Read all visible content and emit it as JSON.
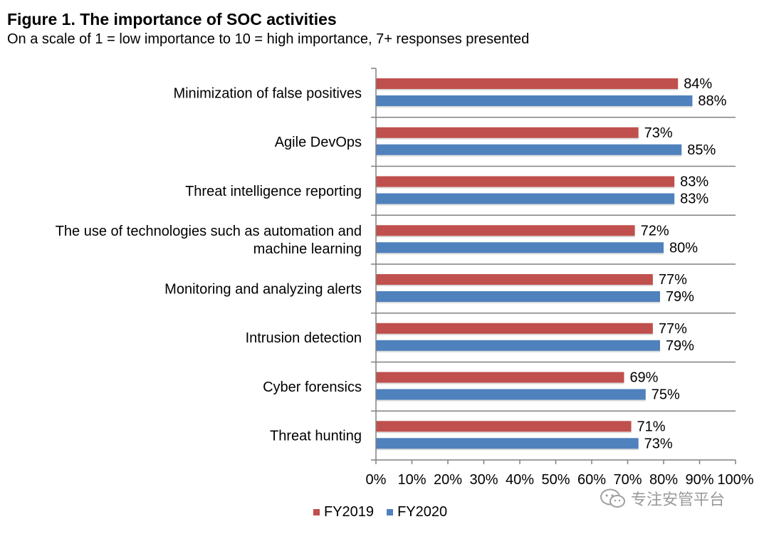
{
  "title": "Figure 1. The importance of SOC activities",
  "subtitle": "On a scale of 1 = low importance to 10 = high importance, 7+ responses presented",
  "watermark": {
    "text": "专注安管平台",
    "icon": "wechat-icon"
  },
  "chart_data": {
    "type": "bar",
    "orientation": "horizontal",
    "categories": [
      "Minimization of false positives",
      "Agile DevOps",
      "Threat intelligence reporting",
      "The use of technologies such as automation and machine learning",
      "Monitoring and analyzing alerts",
      "Intrusion detection",
      "Cyber forensics",
      "Threat hunting"
    ],
    "category_lines": [
      [
        "Minimization of false positives"
      ],
      [
        "Agile DevOps"
      ],
      [
        "Threat intelligence reporting"
      ],
      [
        "The use of technologies such as automation and",
        "machine learning"
      ],
      [
        "Monitoring and analyzing alerts"
      ],
      [
        "Intrusion detection"
      ],
      [
        "Cyber forensics"
      ],
      [
        "Threat hunting"
      ]
    ],
    "series": [
      {
        "name": "FY2019",
        "color": "#c0504d",
        "values": [
          84,
          73,
          83,
          72,
          77,
          77,
          69,
          71
        ],
        "labels": [
          "84%",
          "73%",
          "83%",
          "72%",
          "77%",
          "77%",
          "69%",
          "71%"
        ]
      },
      {
        "name": "FY2020",
        "color": "#4f81bd",
        "values": [
          88,
          85,
          83,
          80,
          79,
          79,
          75,
          73
        ],
        "labels": [
          "88%",
          "85%",
          "83%",
          "80%",
          "79%",
          "79%",
          "75%",
          "73%"
        ]
      }
    ],
    "xlim": [
      0,
      100
    ],
    "x_ticks": [
      0,
      10,
      20,
      30,
      40,
      50,
      60,
      70,
      80,
      90,
      100
    ],
    "x_tick_labels": [
      "0%",
      "10%",
      "20%",
      "30%",
      "40%",
      "50%",
      "60%",
      "70%",
      "80%",
      "90%",
      "100%"
    ],
    "xlabel": "",
    "ylabel": "",
    "grid": false,
    "legend_position": "bottom"
  }
}
